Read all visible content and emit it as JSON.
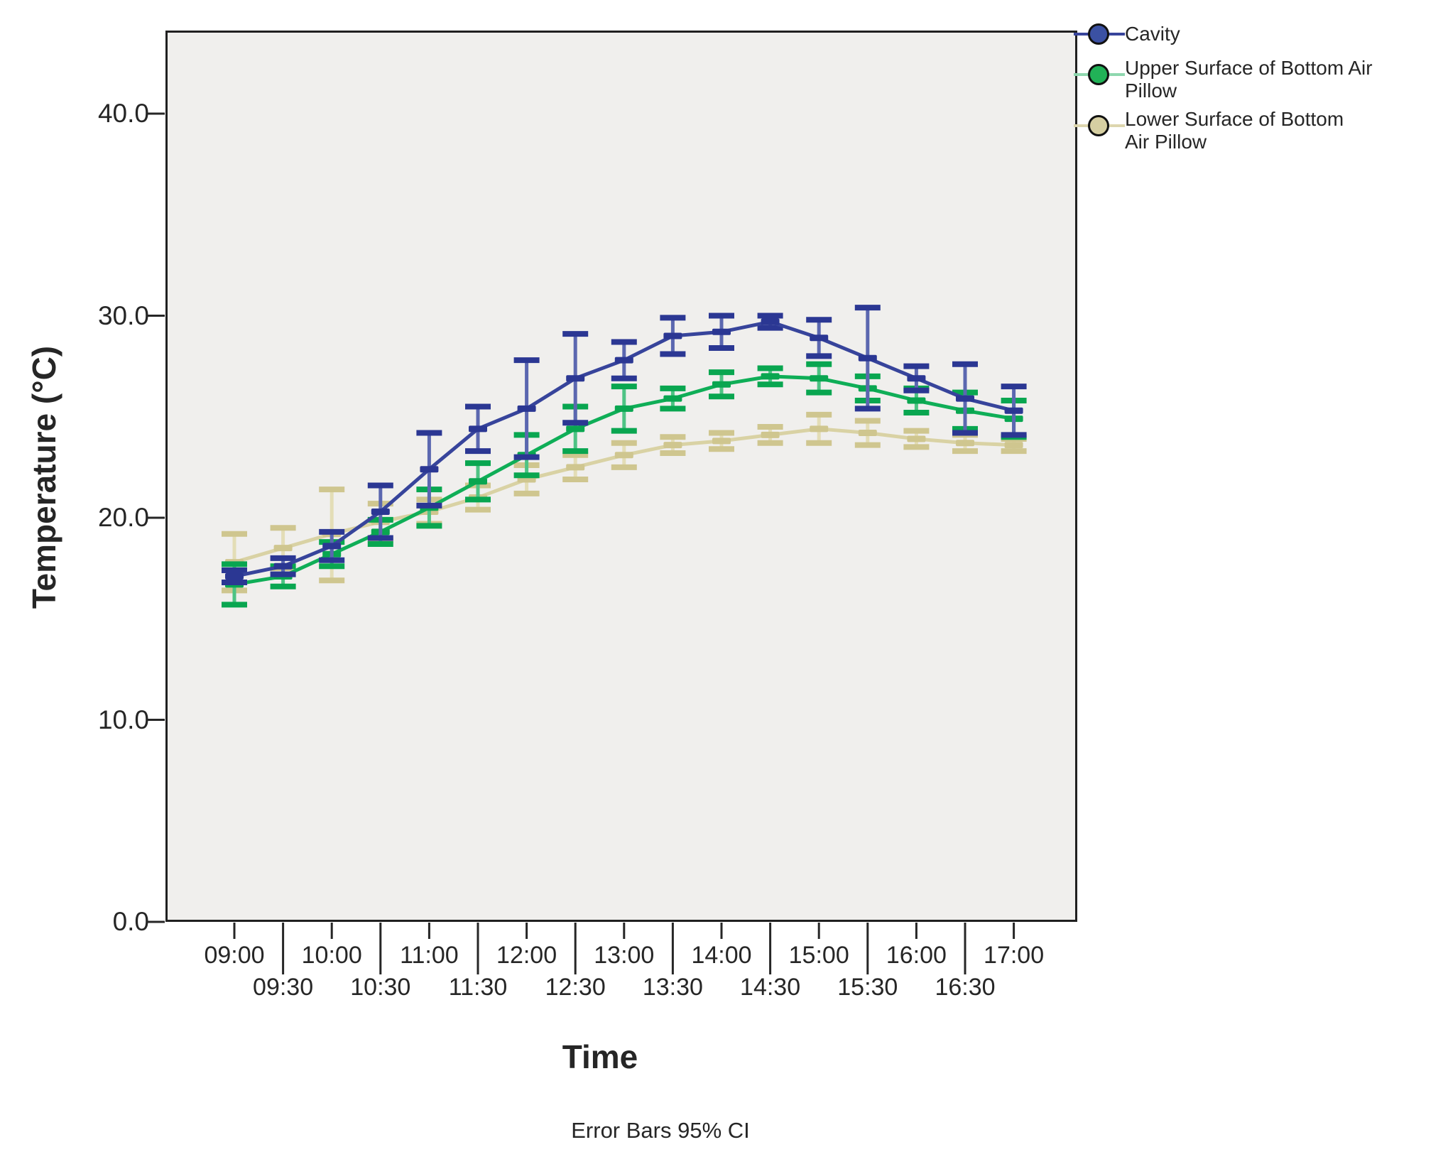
{
  "figure": {
    "y_axis_title": "Temperature (°C)",
    "x_axis_title": "Time",
    "caption": "Error Bars 95% CI"
  },
  "colors": {
    "page_bg": "#ffffff",
    "plot_bg": "#f0efed",
    "axis": "#262626"
  },
  "legend": {
    "items": [
      {
        "label": "Cavity",
        "fill": "#3b51a3",
        "line_color": "#37449b"
      },
      {
        "label": "Upper Surface of Bottom Air\nPillow",
        "fill": "#21b257",
        "line_color": "#8ed7ae"
      },
      {
        "label": "Lower Surface of Bottom\nAir Pillow",
        "fill": "#d6cfa2",
        "line_color": "#ddd6ae"
      }
    ]
  },
  "chart_data": {
    "type": "line",
    "title": "",
    "xlabel": "Time",
    "ylabel": "Temperature (°C)",
    "caption": "Error Bars 95% CI",
    "grid": false,
    "legend_position": "top-right-outside",
    "error_bars": "95% CI",
    "x": [
      "09:00",
      "09:30",
      "10:00",
      "10:30",
      "11:00",
      "11:30",
      "12:00",
      "12:30",
      "13:00",
      "13:30",
      "14:00",
      "14:30",
      "15:00",
      "15:30",
      "16:00",
      "16:30",
      "17:00"
    ],
    "x_label_rows": {
      "row1": [
        "09:00",
        "10:00",
        "11:00",
        "12:00",
        "13:00",
        "14:00",
        "15:00",
        "16:00",
        "17:00"
      ],
      "row2": [
        "09:30",
        "10:30",
        "11:30",
        "12:30",
        "13:30",
        "14:30",
        "15:30",
        "16:30"
      ]
    },
    "y_ticks": [
      0,
      10,
      20,
      30,
      40
    ],
    "y_tick_labels": [
      "0.0",
      "10.0",
      "20.0",
      "30.0",
      "40.0"
    ],
    "ylim": [
      0,
      44.7
    ],
    "series": [
      {
        "name": "Cavity",
        "color": "#37449b",
        "stem_color": "#5b67b0",
        "cap_color": "#2b3793",
        "values": [
          17.1,
          17.6,
          18.6,
          20.3,
          22.4,
          24.4,
          25.4,
          26.9,
          27.8,
          29.0,
          29.2,
          29.7,
          28.9,
          27.9,
          26.9,
          25.9,
          25.3
        ],
        "ci_low": [
          16.8,
          17.2,
          17.9,
          19.0,
          20.6,
          23.3,
          23.0,
          24.7,
          26.9,
          28.1,
          28.4,
          29.4,
          28.0,
          25.4,
          26.3,
          24.2,
          24.1
        ],
        "ci_high": [
          17.4,
          18.0,
          19.3,
          21.6,
          24.2,
          25.5,
          27.8,
          29.1,
          28.7,
          29.9,
          30.0,
          30.0,
          29.8,
          30.4,
          27.5,
          27.6,
          26.5
        ]
      },
      {
        "name": "Upper Surface of Bottom Air Pillow",
        "color": "#0fae57",
        "stem_color": "#4ec384",
        "cap_color": "#09a650",
        "values": [
          16.7,
          17.1,
          18.2,
          19.3,
          20.5,
          21.8,
          23.1,
          24.4,
          25.4,
          25.9,
          26.6,
          27.0,
          26.9,
          26.4,
          25.8,
          25.3,
          24.9
        ],
        "ci_low": [
          15.7,
          16.6,
          17.6,
          18.7,
          19.6,
          20.9,
          22.1,
          23.3,
          24.3,
          25.4,
          26.0,
          26.6,
          26.2,
          25.8,
          25.2,
          24.4,
          24.0
        ],
        "ci_high": [
          17.7,
          17.6,
          18.8,
          19.9,
          21.4,
          22.7,
          24.1,
          25.5,
          26.5,
          26.4,
          27.2,
          27.4,
          27.6,
          27.0,
          26.4,
          26.2,
          25.8
        ]
      },
      {
        "name": "Lower Surface of Bottom Air Pillow",
        "color": "#d9d2a4",
        "stem_color": "#e3ddb6",
        "cap_color": "#cfc68f",
        "values": [
          17.8,
          18.5,
          19.2,
          19.8,
          20.3,
          21.0,
          21.9,
          22.5,
          23.1,
          23.6,
          23.8,
          24.1,
          24.4,
          24.2,
          23.9,
          23.7,
          23.6
        ],
        "ci_low": [
          16.4,
          17.5,
          16.9,
          18.9,
          19.7,
          20.4,
          21.2,
          21.9,
          22.5,
          23.2,
          23.4,
          23.7,
          23.7,
          23.6,
          23.5,
          23.3,
          23.3
        ],
        "ci_high": [
          19.2,
          19.5,
          21.4,
          20.7,
          20.9,
          21.6,
          22.6,
          23.1,
          23.7,
          24.0,
          24.2,
          24.5,
          25.1,
          24.8,
          24.3,
          24.1,
          23.9
        ]
      }
    ]
  }
}
